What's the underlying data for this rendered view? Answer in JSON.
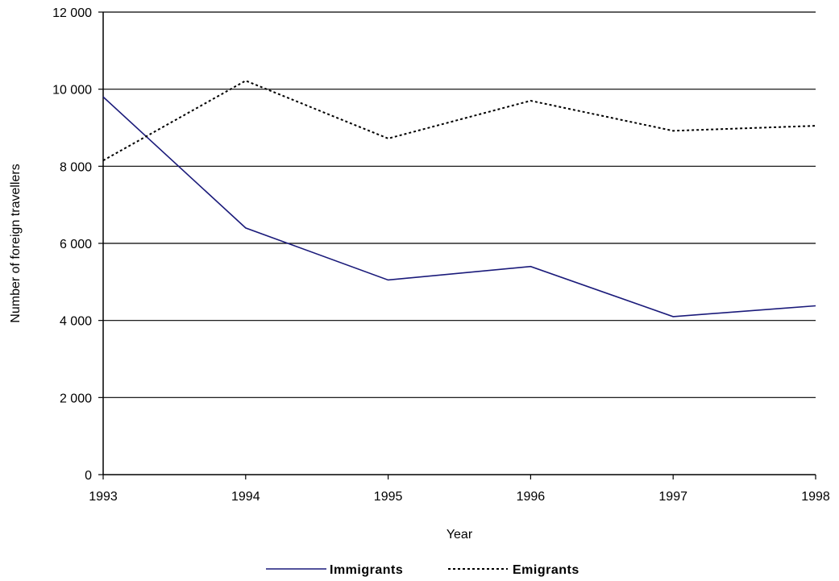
{
  "chart_data": {
    "type": "line",
    "title": "",
    "xlabel": "Year",
    "ylabel": "Number of foreign travellers",
    "x": [
      "1993",
      "1994",
      "1995",
      "1996",
      "1997",
      "1998"
    ],
    "series": [
      {
        "name": "Immigrants",
        "values": [
          9800,
          6400,
          5050,
          5400,
          4100,
          4380
        ],
        "color": "#1a1a7a",
        "style": "solid"
      },
      {
        "name": "Emigrants",
        "values": [
          8150,
          10220,
          8720,
          9700,
          8920,
          9050
        ],
        "color": "#000000",
        "style": "dotted"
      }
    ],
    "ylim": [
      0,
      12000
    ],
    "yticks": [
      0,
      2000,
      4000,
      6000,
      8000,
      10000,
      12000
    ],
    "ytick_labels": [
      "0",
      "2 000",
      "4 000",
      "6 000",
      "8 000",
      "10 000",
      "12 000"
    ],
    "grid": "horizontal",
    "legend_position": "bottom-center"
  }
}
